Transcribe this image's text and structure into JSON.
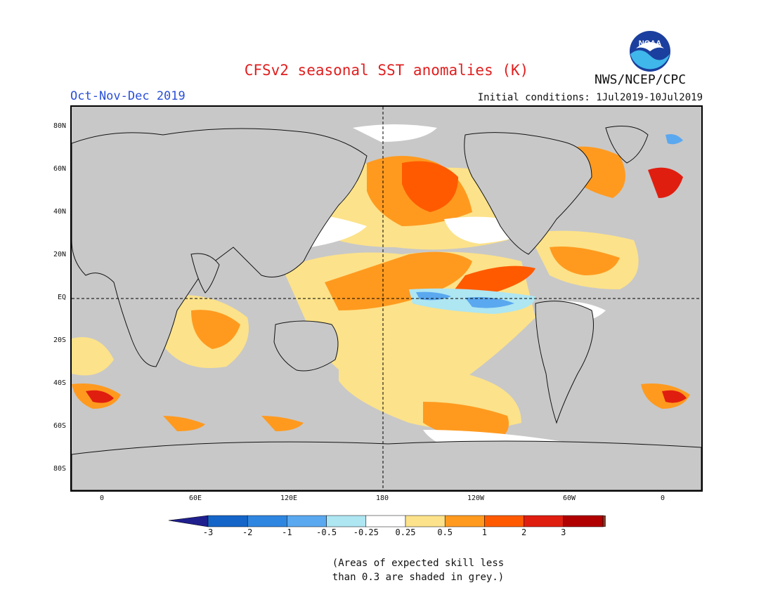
{
  "header": {
    "title": "CFSv2 seasonal SST anomalies (K)",
    "season": "Oct-Nov-Dec 2019",
    "initial_conditions": "Initial conditions: 1Jul2019-10Jul2019",
    "agency": "NWS/NCEP/CPC",
    "logo_text": "NOAA"
  },
  "map": {
    "lat_labels": [
      "80N",
      "60N",
      "40N",
      "20N",
      "EQ",
      "20S",
      "40S",
      "60S",
      "80S"
    ],
    "lon_labels": [
      "0",
      "60E",
      "120E",
      "180",
      "120W",
      "60W",
      "0"
    ]
  },
  "colorbar": {
    "tick_labels": [
      "-3",
      "-2",
      "-1",
      "-0.5",
      "-0.25",
      "0.25",
      "0.5",
      "1",
      "2",
      "3"
    ],
    "colors": [
      "#1f1f8e",
      "#1565c8",
      "#2f86e0",
      "#5aa8ef",
      "#aee6f2",
      "#ffffff",
      "#fce28a",
      "#ff9a1f",
      "#ff5a00",
      "#e01e10",
      "#b00000",
      "#7a3e2e"
    ]
  },
  "note": {
    "line1": "(Areas of expected skill less",
    "line2": "than 0.3 are shaded in grey.)"
  },
  "colors": {
    "title": "#e11e1e",
    "season": "#2a4fd8",
    "skill_grey": "#c8c8c8"
  }
}
